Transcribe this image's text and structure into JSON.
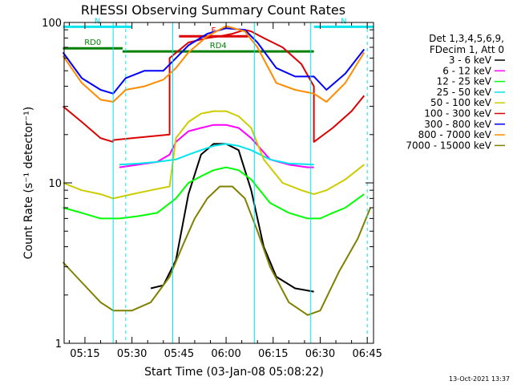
{
  "chart_data": {
    "type": "line",
    "title": "RHESSI Observing Summary Count Rates",
    "xlabel": "Start Time (03-Jan-08 05:08:22)",
    "ylabel": "Count Rate (s⁻¹ detector⁻¹)",
    "y_scale": "log",
    "ylim": [
      1,
      100
    ],
    "xlim": [
      "05:08:22",
      "06:47:00"
    ],
    "x_ticks": [
      "05:15",
      "05:30",
      "05:45",
      "06:00",
      "06:15",
      "06:30",
      "06:45"
    ],
    "y_ticks": [
      "1",
      "10",
      "100"
    ],
    "legend_header": [
      "Det 1,3,4,5,6,9,",
      "FDecim 1, Att 0"
    ],
    "legend_position": "right",
    "footer_date": "13-Oct-2021 13:37",
    "flags": [
      {
        "label": "N",
        "start": "05:08",
        "end": "05:30",
        "level": 94,
        "color": "#00e5ee"
      },
      {
        "label": "N",
        "start": "06:28",
        "end": "06:47",
        "level": 94,
        "color": "#00e5ee"
      },
      {
        "label": "F",
        "start": "05:45",
        "end": "06:07",
        "level": 82,
        "color": "#dd0000"
      },
      {
        "label": "RD0",
        "start": "05:08",
        "end": "05:27",
        "level": 69,
        "color": "#008000"
      },
      {
        "label": "RD4",
        "start": "05:27",
        "end": "06:28",
        "level": 66,
        "color": "#008000"
      }
    ],
    "night_boundaries": [
      "05:24",
      "05:43",
      "06:09",
      "06:27"
    ],
    "saa_lines": [
      "05:28",
      "06:45"
    ],
    "series": [
      {
        "name": "3 - 6 keV",
        "color": "#000000",
        "x": [
          "05:36",
          "05:40",
          "05:44",
          "05:48",
          "05:52",
          "05:56",
          "06:00",
          "06:04",
          "06:08",
          "06:12",
          "06:16",
          "06:22",
          "06:28"
        ],
        "y": [
          2.2,
          2.3,
          3.3,
          8.5,
          15,
          17.5,
          17.5,
          16,
          9,
          4,
          2.6,
          2.2,
          2.1
        ]
      },
      {
        "name": "6 - 12 keV",
        "color": "#ff00ff",
        "x": [
          "05:26",
          "05:32",
          "05:38",
          "05:42",
          "05:44",
          "05:48",
          "05:52",
          "05:56",
          "06:00",
          "06:04",
          "06:08",
          "06:14",
          "06:20",
          "06:26",
          "06:28"
        ],
        "y": [
          12.5,
          13,
          13.5,
          15,
          18,
          21,
          22,
          23,
          23,
          22,
          19,
          14,
          13,
          12.5,
          12.5
        ]
      },
      {
        "name": "12 - 25 keV",
        "color": "#00ff00",
        "x": [
          "05:08",
          "05:14",
          "05:20",
          "05:26",
          "05:32",
          "05:38",
          "05:44",
          "05:48",
          "05:52",
          "05:56",
          "06:00",
          "06:04",
          "06:08",
          "06:14",
          "06:20",
          "06:26",
          "06:30",
          "06:34",
          "06:38",
          "06:44"
        ],
        "y": [
          7,
          6.5,
          6,
          6,
          6.2,
          6.5,
          8,
          10,
          11,
          12,
          12.5,
          12,
          10.5,
          7.5,
          6.5,
          6,
          6,
          6.5,
          7,
          8.5
        ]
      },
      {
        "name": "25 - 50 keV",
        "color": "#00e5ee",
        "x": [
          "05:26",
          "05:32",
          "05:38",
          "05:44",
          "05:48",
          "05:52",
          "05:56",
          "06:00",
          "06:04",
          "06:08",
          "06:14",
          "06:20",
          "06:28"
        ],
        "y": [
          13,
          13.2,
          13.5,
          14,
          15,
          16,
          17,
          17.5,
          17,
          16,
          14,
          13.2,
          13
        ]
      },
      {
        "name": "50 - 100 keV",
        "color": "#cccc00",
        "x": [
          "05:08",
          "05:14",
          "05:20",
          "05:24",
          "05:30",
          "05:36",
          "05:42",
          "05:44",
          "05:48",
          "05:52",
          "05:56",
          "06:00",
          "06:04",
          "06:08",
          "06:12",
          "06:18",
          "06:24",
          "06:28",
          "06:32",
          "06:38",
          "06:44"
        ],
        "y": [
          10,
          9,
          8.5,
          8,
          8.5,
          9,
          9.5,
          19,
          24,
          27,
          28,
          28,
          26,
          22,
          14,
          10,
          9,
          8.5,
          9,
          10.5,
          13
        ]
      },
      {
        "name": "100 - 300 keV",
        "color": "#dd0000",
        "x": [
          "05:08",
          "05:14",
          "05:20",
          "05:24",
          "05:24",
          "05:30",
          "05:36",
          "05:42",
          "05:42",
          "05:48",
          "05:54",
          "05:58",
          "06:02",
          "06:06",
          "06:08",
          "06:12",
          "06:18",
          "06:24",
          "06:28",
          "06:28",
          "06:34",
          "06:40",
          "06:44"
        ],
        "y": [
          30,
          24,
          19,
          18,
          18.5,
          19,
          19.5,
          20,
          60,
          75,
          80,
          82,
          85,
          90,
          88,
          80,
          70,
          55,
          40,
          18,
          22,
          28,
          35
        ]
      },
      {
        "name": "300 - 800 keV",
        "color": "#0000ff",
        "x": [
          "05:08",
          "05:14",
          "05:20",
          "05:24",
          "05:28",
          "05:34",
          "05:40",
          "05:44",
          "05:48",
          "05:54",
          "06:00",
          "06:06",
          "06:10",
          "06:16",
          "06:22",
          "06:28",
          "06:32",
          "06:38",
          "06:44"
        ],
        "y": [
          65,
          45,
          38,
          36,
          45,
          50,
          50,
          60,
          72,
          85,
          92,
          90,
          75,
          52,
          46,
          46,
          38,
          48,
          68
        ]
      },
      {
        "name": "800 - 7000 keV",
        "color": "#ff8c00",
        "x": [
          "05:08",
          "05:14",
          "05:20",
          "05:24",
          "05:28",
          "05:34",
          "05:40",
          "05:44",
          "05:48",
          "05:54",
          "06:00",
          "06:06",
          "06:10",
          "06:16",
          "06:22",
          "06:28",
          "06:32",
          "06:38",
          "06:44"
        ],
        "y": [
          62,
          42,
          33,
          32,
          38,
          40,
          44,
          52,
          65,
          82,
          95,
          88,
          70,
          42,
          38,
          36,
          32,
          42,
          65
        ]
      },
      {
        "name": "7000 - 15000 keV",
        "color": "#808000",
        "x": [
          "05:08",
          "05:14",
          "05:20",
          "05:24",
          "05:30",
          "05:36",
          "05:42",
          "05:46",
          "05:50",
          "05:54",
          "05:58",
          "06:02",
          "06:06",
          "06:10",
          "06:14",
          "06:20",
          "06:26",
          "06:30",
          "06:36",
          "06:42",
          "06:46"
        ],
        "y": [
          3.2,
          2.4,
          1.8,
          1.6,
          1.6,
          1.8,
          2.6,
          4,
          6,
          8,
          9.5,
          9.5,
          8,
          5,
          3,
          1.8,
          1.5,
          1.6,
          2.8,
          4.5,
          7
        ]
      }
    ]
  }
}
